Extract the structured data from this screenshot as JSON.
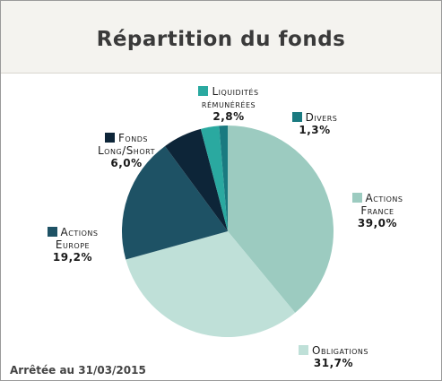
{
  "chart_data": {
    "type": "pie",
    "title": "Répartition du fonds",
    "categories": [
      "Actions France",
      "Obligations",
      "Actions Europe",
      "Fonds Long/Short",
      "Liquidités rémunérées",
      "Divers"
    ],
    "values": [
      39.0,
      31.7,
      19.2,
      6.0,
      2.8,
      1.3
    ],
    "value_labels": [
      "39,0%",
      "31,7%",
      "19,2%",
      "6,0%",
      "2,8%",
      "1,3%"
    ],
    "colors": [
      "#9ccbc0",
      "#bfe0d8",
      "#1e5265",
      "#0d2538",
      "#2aa9a0",
      "#1a7a80"
    ],
    "note": "Arrêtée au 31/03/2015"
  }
}
